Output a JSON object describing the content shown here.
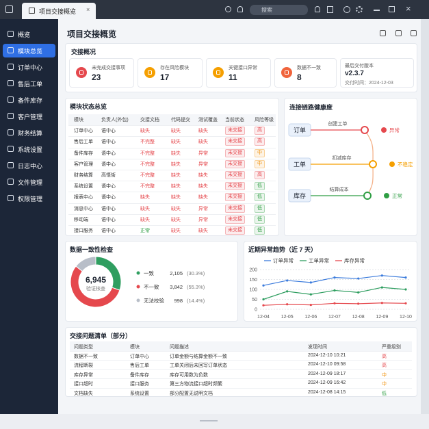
{
  "window": {
    "tab": "项目交接概览",
    "search_placeholder": "搜索"
  },
  "sidebar": {
    "items": [
      "概览",
      "模块总览",
      "订单中心",
      "售后工单",
      "备件库存",
      "客户管理",
      "财务结算",
      "系统设置",
      "日志中心",
      "文件管理",
      "权限管理"
    ],
    "active": 1
  },
  "page_title": "项目交接概览",
  "summary": {
    "title": "交接概况",
    "stats": [
      {
        "label": "未完成交接事项",
        "value": 23,
        "color": "#e5484d"
      },
      {
        "label": "存在风险模块",
        "value": 17,
        "color": "#f59f00"
      },
      {
        "label": "关键接口异常",
        "value": 11,
        "color": "#f59f00"
      },
      {
        "label": "数据不一致",
        "value": 8,
        "color": "#f0643c"
      }
    ],
    "version": {
      "label": "最后交付版本",
      "value": "v2.3.7",
      "date": "交付时间：2024-12-03"
    }
  },
  "tones": {
    "缺失": "#e5484d",
    "不完整": "#e5484d",
    "异常": "#e5484d",
    "正常": "#2f9e44",
    "未交接": "#e5484d",
    "高": "#e5484d",
    "中": "#f08c00",
    "低": "#2f9e44"
  },
  "modules": {
    "title": "模块状态总览",
    "columns": [
      "模块",
      "负责人(外包)",
      "交接文档",
      "代码提交",
      "测试覆盖",
      "当前状态",
      "风险等级"
    ],
    "badge_columns": [
      5,
      6
    ],
    "rows": [
      [
        "订单中心",
        "语中心",
        "缺失",
        "缺失",
        "缺失",
        "未交接",
        "高"
      ],
      [
        "售后工单",
        "语中心",
        "不完整",
        "缺失",
        "缺失",
        "未交接",
        "高"
      ],
      [
        "备件库存",
        "语中心",
        "不完整",
        "缺失",
        "异常",
        "未交接",
        "中"
      ],
      [
        "客户管理",
        "语中心",
        "不完整",
        "缺失",
        "异常",
        "未交接",
        "中"
      ],
      [
        "财务结算",
        "高悟街",
        "不完整",
        "缺失",
        "缺失",
        "未交接",
        "高"
      ],
      [
        "系统设置",
        "语中心",
        "不完整",
        "缺失",
        "缺失",
        "未交接",
        "低"
      ],
      [
        "报表中心",
        "语中心",
        "缺失",
        "缺失",
        "缺失",
        "未交接",
        "低"
      ],
      [
        "消息中心",
        "语中心",
        "缺失",
        "缺失",
        "异常",
        "未交接",
        "低"
      ],
      [
        "移动端",
        "语中心",
        "缺失",
        "缺失",
        "异常",
        "未交接",
        "低"
      ],
      [
        "接口服务",
        "语中心",
        "正常",
        "缺失",
        "缺失",
        "未交接",
        "低"
      ]
    ]
  },
  "link_health": {
    "title": "连接链路健康度",
    "links": [
      {
        "node": "订单",
        "edge": "创建工单",
        "status": "异常",
        "color": "#e5484d"
      },
      {
        "node": "工单",
        "edge": "扣减库存",
        "status": "不稳定",
        "color": "#f59f00"
      },
      {
        "node": "库存",
        "edge": "结算成本",
        "status": "正常",
        "color": "#2f9e44"
      }
    ]
  },
  "chart_data": [
    {
      "type": "pie",
      "title": "数据一致性检查",
      "center_label": "6,945",
      "center_caption": "验证核查",
      "categories": [
        "一致",
        "不一致",
        "无法校验"
      ],
      "values": [
        2105,
        3842,
        998
      ],
      "value_labels": [
        "2,105",
        "3,842",
        "998"
      ],
      "percent_labels": [
        "(30.3%)",
        "(55.3%)",
        "(14.4%)"
      ],
      "colors": [
        "#2f9e60",
        "#e5484d",
        "#b8bec8"
      ]
    },
    {
      "type": "line",
      "title": "近期异常趋势（近 7 天）",
      "categories": [
        "12-04",
        "12-05",
        "12-06",
        "12-07",
        "12-08",
        "12-09",
        "12-10"
      ],
      "series": [
        {
          "name": "订单异常",
          "color": "#3b7bdc",
          "values": [
            120,
            145,
            135,
            160,
            155,
            170,
            160
          ]
        },
        {
          "name": "工单异常",
          "color": "#2f9e60",
          "values": [
            50,
            90,
            75,
            95,
            85,
            110,
            100
          ]
        },
        {
          "name": "库存异常",
          "color": "#e5484d",
          "values": [
            20,
            25,
            22,
            30,
            28,
            32,
            30
          ]
        }
      ],
      "ylim": [
        0,
        200
      ],
      "yticks": [
        0,
        50,
        100,
        150,
        200
      ],
      "grid": true
    }
  ],
  "issues": {
    "title": "交接问题清单（部分）",
    "columns": [
      "问题类型",
      "模块",
      "问题描述",
      "发现时间",
      "严重级别"
    ],
    "rows": [
      [
        "数据不一致",
        "订单中心",
        "订单金额与结算金额不一致",
        "2024-12-10 10:21",
        "高"
      ],
      [
        "流程断裂",
        "售后工单",
        "工单关闭后未回写订单状态",
        "2024-12-10 09:58",
        "高"
      ],
      [
        "库存异常",
        "备件库存",
        "库存可用数为负数",
        "2024-12-09 18:17",
        "中"
      ],
      [
        "接口超时",
        "接口服务",
        "第三方物流接口超时频繁",
        "2024-12-09 16:42",
        "中"
      ],
      [
        "文档缺失",
        "系统设置",
        "部分配置无说明文档",
        "2024-12-08 14:15",
        "低"
      ]
    ]
  }
}
